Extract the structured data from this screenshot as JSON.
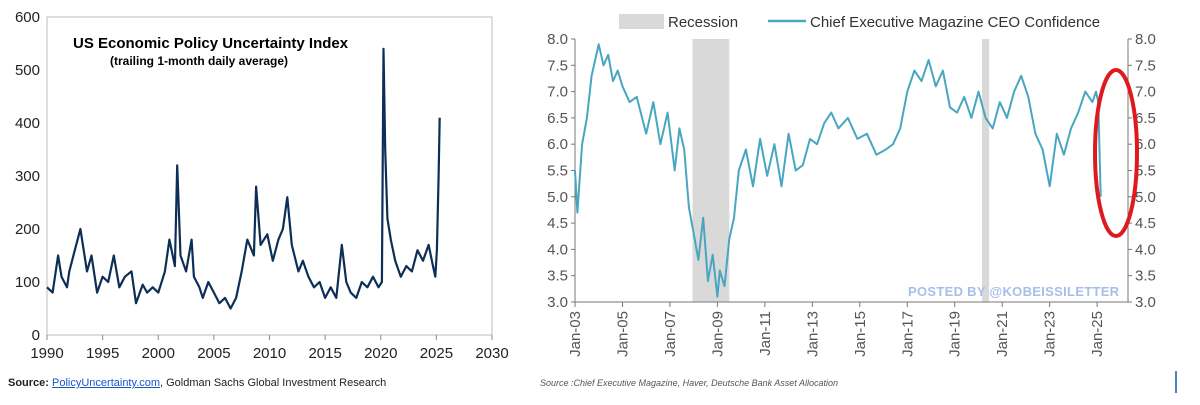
{
  "chart_data": [
    {
      "type": "line",
      "title": "US Economic Policy Uncertainty Index",
      "subtitle": "(trailing 1-month daily average)",
      "x_ticks": [
        "1990",
        "1995",
        "2000",
        "2005",
        "2010",
        "2015",
        "2020",
        "2025",
        "2030"
      ],
      "y_ticks": [
        "0",
        "100",
        "200",
        "300",
        "400",
        "500",
        "600"
      ],
      "xlim": [
        1990,
        2030
      ],
      "ylim": [
        0,
        600
      ],
      "color": "#0d2f57",
      "series": [
        {
          "x": [
            1990,
            1990.5,
            1991,
            1991.3,
            1991.8,
            1992,
            1992.5,
            1993,
            1993.6,
            1994,
            1994.5,
            1995,
            1995.5,
            1996,
            1996.5,
            1997,
            1997.6,
            1998,
            1998.6,
            1999,
            1999.5,
            2000,
            2000.6,
            2001,
            2001.5,
            2001.7,
            2002,
            2002.5,
            2003,
            2003.2,
            2003.7,
            2004,
            2004.5,
            2005,
            2005.5,
            2006,
            2006.5,
            2007,
            2007.5,
            2008,
            2008.6,
            2008.8,
            2009.2,
            2009.8,
            2010.3,
            2010.8,
            2011.2,
            2011.6,
            2012,
            2012.6,
            2013,
            2013.5,
            2014,
            2014.5,
            2015,
            2015.5,
            2016,
            2016.5,
            2016.9,
            2017.3,
            2017.8,
            2018.3,
            2018.8,
            2019.3,
            2019.8,
            2020.1,
            2020.25,
            2020.4,
            2020.6,
            2020.9,
            2021.3,
            2021.8,
            2022.3,
            2022.8,
            2023.3,
            2023.8,
            2024.3,
            2024.7,
            2024.9,
            2025.05,
            2025.2,
            2025.3
          ],
          "y": [
            90,
            80,
            150,
            110,
            90,
            120,
            160,
            200,
            120,
            150,
            80,
            110,
            100,
            150,
            90,
            110,
            120,
            60,
            95,
            80,
            90,
            80,
            120,
            180,
            130,
            320,
            150,
            120,
            180,
            110,
            90,
            70,
            100,
            80,
            60,
            70,
            50,
            70,
            120,
            180,
            150,
            280,
            170,
            190,
            140,
            180,
            200,
            260,
            170,
            120,
            140,
            110,
            90,
            100,
            70,
            90,
            70,
            170,
            100,
            80,
            70,
            100,
            90,
            110,
            90,
            100,
            540,
            350,
            220,
            180,
            140,
            110,
            130,
            120,
            160,
            140,
            170,
            130,
            110,
            160,
            300,
            410
          ]
        }
      ],
      "source_label": "Source: ",
      "source_link": "PolicyUncertainty.com",
      "source_rest": ", Goldman Sachs Global Investment Research"
    },
    {
      "type": "line",
      "x_ticks": [
        "Jan-03",
        "Jan-05",
        "Jan-07",
        "Jan-09",
        "Jan-11",
        "Jan-13",
        "Jan-15",
        "Jan-17",
        "Jan-19",
        "Jan-21",
        "Jan-23",
        "Jan-25"
      ],
      "y_ticks": [
        "3.0",
        "3.5",
        "4.0",
        "4.5",
        "5.0",
        "5.5",
        "6.0",
        "6.5",
        "7.0",
        "7.5",
        "8.0"
      ],
      "xlim": [
        2003,
        2026.3
      ],
      "ylim": [
        3.0,
        8.0
      ],
      "color": "#49a6c1",
      "legend": [
        {
          "name": "Recession",
          "color": "#d9d9d9"
        },
        {
          "name": "Chief Executive Magazine CEO Confidence",
          "color": "#49a6c1"
        }
      ],
      "recessions": [
        [
          2007.95,
          2009.5
        ],
        [
          2020.15,
          2020.45
        ]
      ],
      "series": [
        {
          "name": "Chief Executive Magazine CEO Confidence",
          "x": [
            2003,
            2003.1,
            2003.3,
            2003.5,
            2003.7,
            2004,
            2004.2,
            2004.4,
            2004.6,
            2004.8,
            2005,
            2005.3,
            2005.6,
            2006,
            2006.3,
            2006.6,
            2006.9,
            2007.2,
            2007.4,
            2007.6,
            2007.8,
            2008,
            2008.2,
            2008.4,
            2008.6,
            2008.8,
            2009,
            2009.1,
            2009.3,
            2009.5,
            2009.7,
            2009.9,
            2010.2,
            2010.5,
            2010.8,
            2011.1,
            2011.4,
            2011.7,
            2012,
            2012.3,
            2012.6,
            2012.9,
            2013.2,
            2013.5,
            2013.8,
            2014.1,
            2014.5,
            2014.9,
            2015.3,
            2015.7,
            2016.1,
            2016.4,
            2016.7,
            2017,
            2017.3,
            2017.6,
            2017.9,
            2018.2,
            2018.5,
            2018.8,
            2019.1,
            2019.4,
            2019.7,
            2020,
            2020.3,
            2020.6,
            2020.9,
            2021.2,
            2021.5,
            2021.8,
            2022.1,
            2022.4,
            2022.7,
            2023,
            2023.3,
            2023.6,
            2023.9,
            2024.2,
            2024.5,
            2024.8,
            2024.95,
            2025.05,
            2025.15
          ],
          "y": [
            5.5,
            4.7,
            6.0,
            6.5,
            7.3,
            7.9,
            7.5,
            7.7,
            7.2,
            7.4,
            7.1,
            6.8,
            6.9,
            6.2,
            6.8,
            6.0,
            6.6,
            5.5,
            6.3,
            5.9,
            4.8,
            4.3,
            3.8,
            4.6,
            3.4,
            3.9,
            3.1,
            3.6,
            3.3,
            4.2,
            4.6,
            5.5,
            5.9,
            5.2,
            6.1,
            5.4,
            6.0,
            5.2,
            6.2,
            5.5,
            5.6,
            6.1,
            6.0,
            6.4,
            6.6,
            6.3,
            6.5,
            6.1,
            6.2,
            5.8,
            5.9,
            6.0,
            6.3,
            7.0,
            7.4,
            7.2,
            7.6,
            7.1,
            7.4,
            6.7,
            6.6,
            6.9,
            6.5,
            7.0,
            6.5,
            6.3,
            6.8,
            6.5,
            7.0,
            7.3,
            6.9,
            6.2,
            5.9,
            5.2,
            6.2,
            5.8,
            6.3,
            6.6,
            7.0,
            6.8,
            7.0,
            6.8,
            5.0
          ]
        }
      ],
      "watermark": "POSTED BY @KOBEISSILETTER",
      "source": "Source :Chief Executive Magazine, Haver, Deutsche Bank Asset Allocation"
    }
  ]
}
